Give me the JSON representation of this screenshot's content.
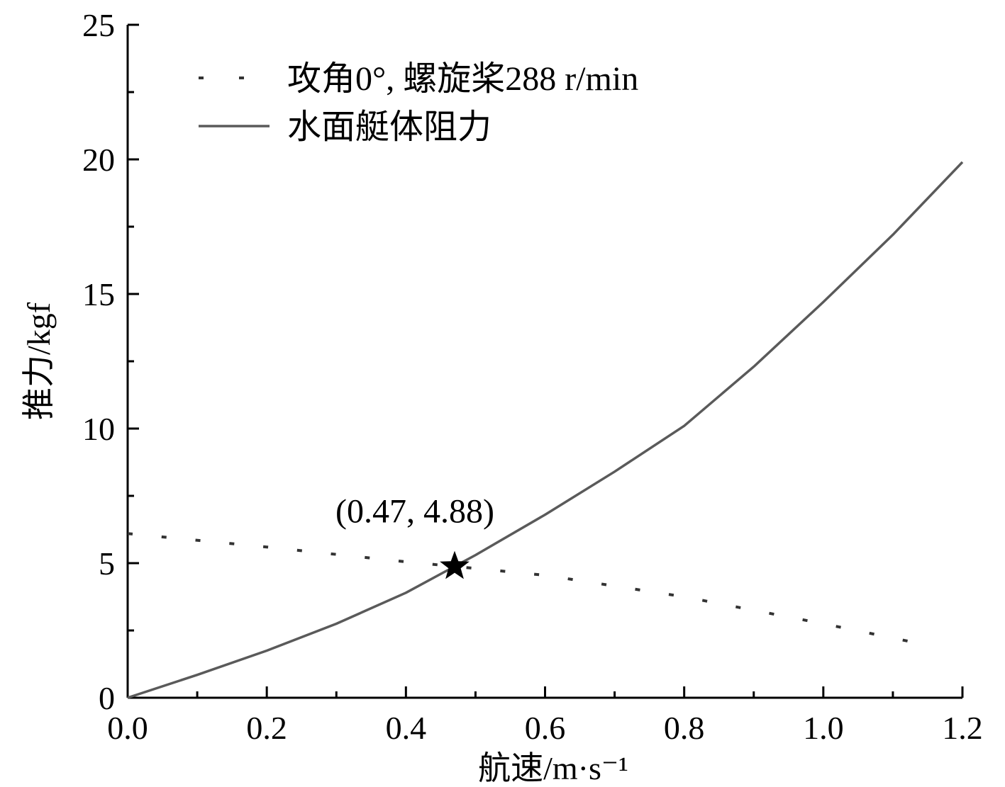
{
  "chart_data": {
    "type": "line",
    "xlabel": "航速/m·s⁻¹",
    "ylabel": "推力/kgf",
    "xlim": [
      0,
      1.2
    ],
    "ylim": [
      0,
      25
    ],
    "x_ticks": [
      "0.0",
      "0.2",
      "0.4",
      "0.6",
      "0.8",
      "1.0",
      "1.2"
    ],
    "y_ticks": [
      "0",
      "5",
      "10",
      "15",
      "20",
      "25"
    ],
    "grid": false,
    "legend_position": "top-left",
    "series": [
      {
        "name": "攻角0°, 螺旋桨288 r/min",
        "style": "dotted",
        "color": "#333333",
        "x": [
          0.0,
          0.2,
          0.4,
          0.47,
          0.6,
          0.8,
          1.0,
          1.16
        ],
        "y": [
          6.1,
          5.6,
          5.05,
          4.88,
          4.55,
          3.75,
          2.75,
          1.9
        ]
      },
      {
        "name": "水面艇体阻力",
        "style": "solid",
        "color": "#5a5a5a",
        "x": [
          0.0,
          0.1,
          0.2,
          0.3,
          0.4,
          0.47,
          0.5,
          0.6,
          0.7,
          0.8,
          0.9,
          1.0,
          1.1,
          1.2
        ],
        "y": [
          0.0,
          0.85,
          1.75,
          2.75,
          3.9,
          4.88,
          5.3,
          6.8,
          8.4,
          10.1,
          12.3,
          14.7,
          17.2,
          19.9
        ]
      }
    ],
    "annotations": [
      {
        "text": "(0.47, 4.88)",
        "x": 0.47,
        "y": 4.88,
        "marker": "star"
      }
    ]
  }
}
